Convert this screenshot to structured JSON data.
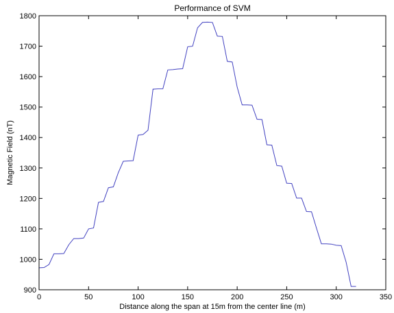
{
  "chart_data": {
    "type": "line",
    "title": "Performance of SVM",
    "xlabel": "Distance along the span at 15m from the center line (m)",
    "ylabel": "Magnetic Field (nT)",
    "xlim": [
      0,
      350
    ],
    "ylim": [
      900,
      1800
    ],
    "xticks": [
      0,
      50,
      100,
      150,
      200,
      250,
      300,
      350
    ],
    "yticks": [
      900,
      1000,
      1100,
      1200,
      1300,
      1400,
      1500,
      1600,
      1700,
      1800
    ],
    "grid": false,
    "legend": "none",
    "series": [
      {
        "color": "#4040c0",
        "x": [
          0,
          5,
          10,
          15,
          20,
          25,
          30,
          35,
          40,
          45,
          50,
          55,
          60,
          65,
          70,
          75,
          80,
          85,
          90,
          95,
          100,
          105,
          110,
          115,
          120,
          125,
          130,
          135,
          140,
          145,
          150,
          155,
          160,
          165,
          170,
          175,
          180,
          185,
          190,
          195,
          200,
          205,
          210,
          215,
          220,
          225,
          230,
          235,
          240,
          245,
          250,
          255,
          260,
          265,
          270,
          275,
          280,
          285,
          290,
          295,
          300,
          305,
          310,
          315,
          320
        ],
        "y": [
          972,
          973,
          983,
          1018,
          1018,
          1019,
          1048,
          1068,
          1068,
          1070,
          1100,
          1103,
          1187,
          1190,
          1235,
          1238,
          1285,
          1322,
          1323,
          1324,
          1408,
          1410,
          1424,
          1559,
          1560,
          1560,
          1622,
          1623,
          1625,
          1626,
          1698,
          1700,
          1760,
          1778,
          1779,
          1778,
          1733,
          1732,
          1650,
          1648,
          1566,
          1507,
          1507,
          1506,
          1460,
          1459,
          1376,
          1375,
          1308,
          1306,
          1250,
          1249,
          1201,
          1201,
          1157,
          1156,
          1103,
          1051,
          1051,
          1050,
          1046,
          1045,
          990,
          911,
          911
        ]
      }
    ]
  }
}
